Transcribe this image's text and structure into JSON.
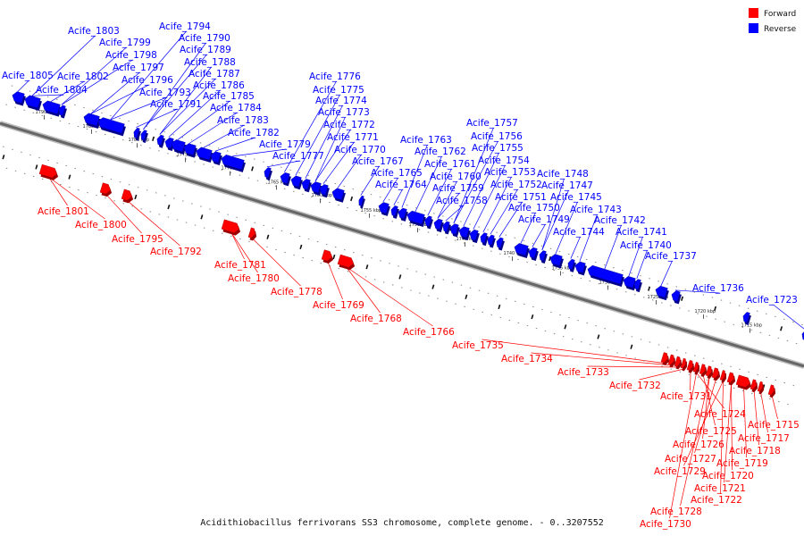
{
  "caption": "Acidithiobacillus ferrivorans SS3 chromosome, complete genome. - 0..3207552",
  "legend": [
    {
      "label": "Forward",
      "color": "#ff0000"
    },
    {
      "label": "Reverse",
      "color": "#0000ff"
    }
  ],
  "colors": {
    "forward": "#ff0000",
    "reverse": "#0000ff",
    "backbone": "#666666"
  },
  "ticks": [
    "1790 kbp",
    "1785 kbp",
    "1780 kbp",
    "1775 kbp",
    "1770 kbp",
    "1765 kbp",
    "1760 kbp",
    "1755 kbp",
    "1750 kbp",
    "1745 kbp",
    "1740 kbp",
    "1735 kbp",
    "1730 kbp",
    "1725 kbp",
    "1720 kbp",
    "1715 kbp"
  ],
  "reverse_genes": [
    "Acife_1805",
    "Acife_1804",
    "Acife_1803",
    "Acife_1802",
    "Acife_1799",
    "Acife_1798",
    "Acife_1797",
    "Acife_1796",
    "Acife_1794",
    "Acife_1793",
    "Acife_1791",
    "Acife_1790",
    "Acife_1789",
    "Acife_1788",
    "Acife_1787",
    "Acife_1786",
    "Acife_1785",
    "Acife_1784",
    "Acife_1783",
    "Acife_1782",
    "Acife_1779",
    "Acife_1777",
    "Acife_1776",
    "Acife_1775",
    "Acife_1774",
    "Acife_1773",
    "Acife_1772",
    "Acife_1771",
    "Acife_1770",
    "Acife_1767",
    "Acife_1765",
    "Acife_1764",
    "Acife_1763",
    "Acife_1762",
    "Acife_1761",
    "Acife_1760",
    "Acife_1759",
    "Acife_1758",
    "Acife_1757",
    "Acife_1756",
    "Acife_1755",
    "Acife_1754",
    "Acife_1753",
    "Acife_1752",
    "Acife_1751",
    "Acife_1750",
    "Acife_1749",
    "Acife_1748",
    "Acife_1747",
    "Acife_1745",
    "Acife_1744",
    "Acife_1743",
    "Acife_1742",
    "Acife_1741",
    "Acife_1740",
    "Acife_1737",
    "Acife_1736",
    "Acife_1723"
  ],
  "forward_genes": [
    "Acife_1801",
    "Acife_1800",
    "Acife_1795",
    "Acife_1792",
    "Acife_1781",
    "Acife_1780",
    "Acife_1778",
    "Acife_1769",
    "Acife_1768",
    "Acife_1766",
    "Acife_1735",
    "Acife_1734",
    "Acife_1733",
    "Acife_1732",
    "Acife_1731",
    "Acife_1724",
    "Acife_1725",
    "Acife_1715",
    "Acife_1726",
    "Acife_1717",
    "Acife_1727",
    "Acife_1718",
    "Acife_1729",
    "Acife_1719",
    "Acife_1720",
    "Acife_1721",
    "Acife_1722",
    "Acife_1728",
    "Acife_1730"
  ]
}
